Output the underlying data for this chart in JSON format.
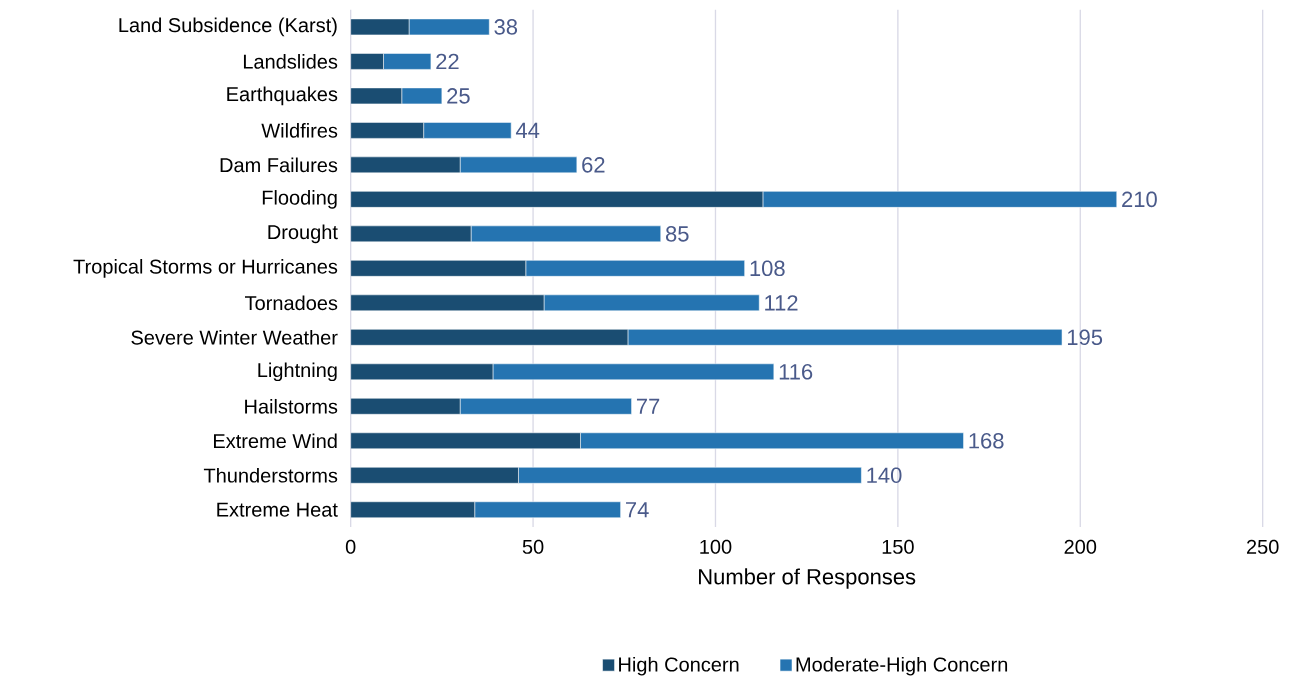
{
  "chart_data": {
    "type": "bar",
    "orientation": "horizontal",
    "stacked": true,
    "xlabel": "Number of Responses",
    "categories": [
      "Land Subsidence (Karst)",
      "Landslides",
      "Earthquakes",
      "Wildfires",
      "Dam Failures",
      "Flooding",
      "Drought",
      "Tropical Storms or Hurricanes",
      "Tornadoes",
      "Severe Winter Weather",
      "Lightning",
      "Hailstorms",
      "Extreme Wind",
      "Thunderstorms",
      "Extreme Heat"
    ],
    "series": [
      {
        "name": "High Concern",
        "color": "#1a4d72",
        "values": [
          16,
          9,
          14,
          20,
          30,
          113,
          33,
          48,
          53,
          76,
          39,
          30,
          63,
          46,
          34
        ]
      },
      {
        "name": "Moderate-High Concern",
        "color": "#2574b1",
        "values": [
          22,
          13,
          11,
          24,
          32,
          97,
          52,
          60,
          59,
          119,
          77,
          47,
          105,
          94,
          40
        ]
      }
    ],
    "totals": [
      "38",
      "22",
      "25",
      "44",
      "62",
      "210",
      "85",
      "108",
      "112",
      "195",
      "116",
      "77",
      "168",
      "140",
      "74"
    ],
    "xlim": [
      0,
      250
    ],
    "xticks": [
      0,
      50,
      100,
      150,
      200,
      250
    ],
    "grid": "x",
    "legend": "bottom"
  }
}
